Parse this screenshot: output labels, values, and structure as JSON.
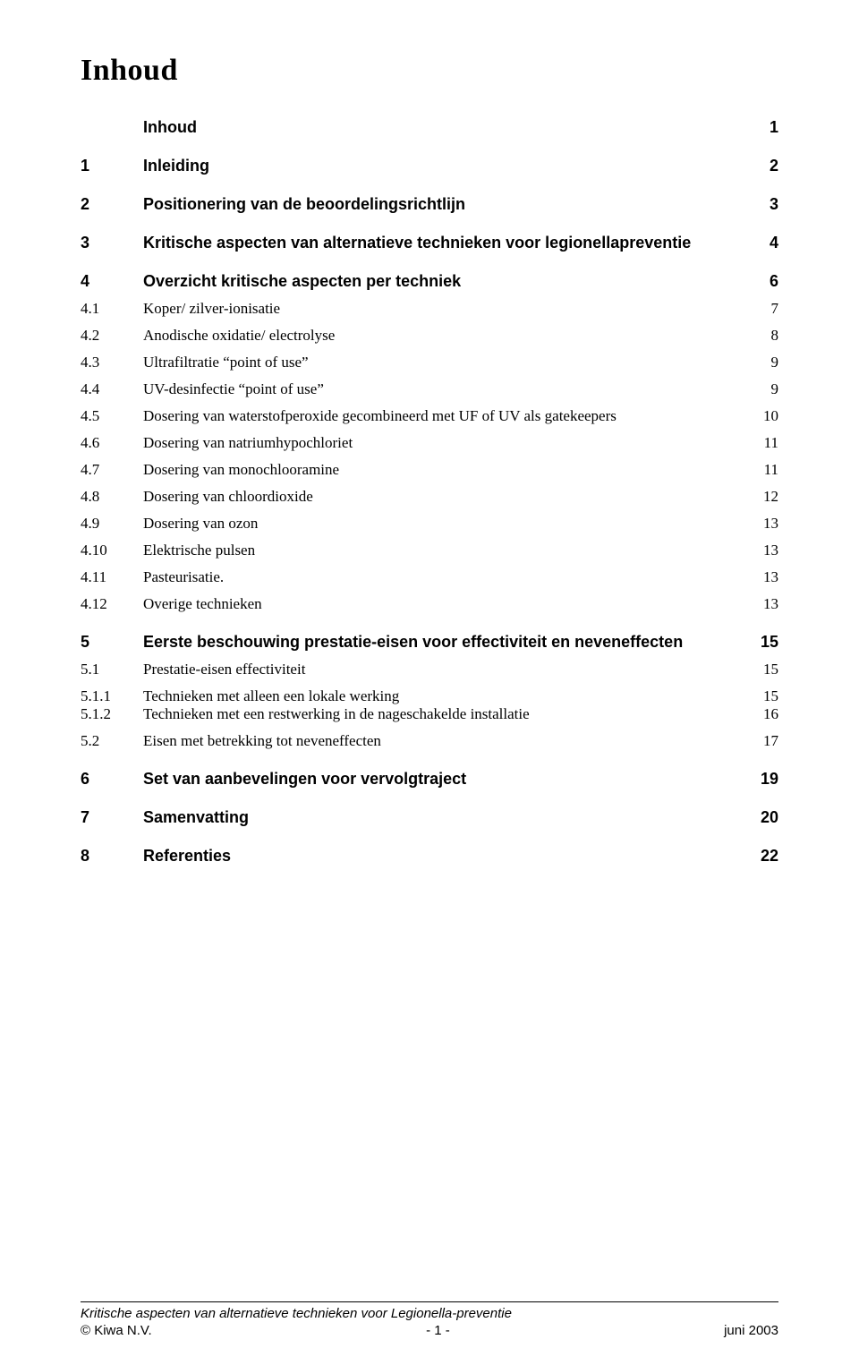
{
  "title": "Inhoud",
  "toc": [
    {
      "num": "",
      "text": "Inhoud",
      "page": "1",
      "level": "heading",
      "first": true
    },
    {
      "num": "1",
      "text": "Inleiding",
      "page": "2",
      "level": "heading"
    },
    {
      "num": "2",
      "text": "Positionering van de beoordelingsrichtlijn",
      "page": "3",
      "level": "heading"
    },
    {
      "num": "3",
      "text": "Kritische aspecten van alternatieve technieken voor legionellapreventie",
      "page": "4",
      "level": "heading"
    },
    {
      "num": "4",
      "text": "Overzicht kritische aspecten per techniek",
      "page": "6",
      "level": "heading"
    },
    {
      "num": "4.1",
      "text": "Koper/ zilver-ionisatie",
      "page": "7",
      "level": "sub"
    },
    {
      "num": "4.2",
      "text": "Anodische oxidatie/ electrolyse",
      "page": "8",
      "level": "sub"
    },
    {
      "num": "4.3",
      "text": "Ultrafiltratie “point of use”",
      "page": "9",
      "level": "sub"
    },
    {
      "num": "4.4",
      "text": "UV-desinfectie “point of use”",
      "page": "9",
      "level": "sub"
    },
    {
      "num": "4.5",
      "text": "Dosering van waterstofperoxide gecombineerd met UF of UV als gatekeepers",
      "page": "10",
      "level": "sub"
    },
    {
      "num": "4.6",
      "text": "Dosering van natriumhypochloriet",
      "page": "11",
      "level": "sub"
    },
    {
      "num": "4.7",
      "text": "Dosering van monochlooramine",
      "page": "11",
      "level": "sub"
    },
    {
      "num": "4.8",
      "text": "Dosering van chloordioxide",
      "page": "12",
      "level": "sub"
    },
    {
      "num": "4.9",
      "text": "Dosering van ozon",
      "page": "13",
      "level": "sub"
    },
    {
      "num": "4.10",
      "text": "Elektrische pulsen",
      "page": "13",
      "level": "sub"
    },
    {
      "num": "4.11",
      "text": "Pasteurisatie.",
      "page": "13",
      "level": "sub"
    },
    {
      "num": "4.12",
      "text": "Overige technieken",
      "page": "13",
      "level": "sub"
    },
    {
      "num": "5",
      "text": "Eerste beschouwing prestatie-eisen voor effectiviteit en neveneffecten",
      "page": "15",
      "level": "heading"
    },
    {
      "num": "5.1",
      "text": "Prestatie-eisen effectiviteit",
      "page": "15",
      "level": "sub"
    },
    {
      "num": "5.1.1",
      "text": "Technieken met alleen een lokale werking",
      "page": "15",
      "level": "subsub"
    },
    {
      "num": "5.1.2",
      "text": "Technieken met een restwerking in de nageschakelde installatie",
      "page": "16",
      "level": "subsub"
    },
    {
      "num": "5.2",
      "text": "Eisen met betrekking tot neveneffecten",
      "page": "17",
      "level": "sub"
    },
    {
      "num": "6",
      "text": "Set van aanbevelingen voor vervolgtraject",
      "page": "19",
      "level": "heading"
    },
    {
      "num": "7",
      "text": "Samenvatting",
      "page": "20",
      "level": "heading"
    },
    {
      "num": "8",
      "text": "Referenties",
      "page": "22",
      "level": "heading"
    }
  ],
  "footer": {
    "title_line": "Kritische aspecten van alternatieve technieken voor Legionella-preventie",
    "left": "© Kiwa N.V.",
    "center": "- 1 -",
    "right": "juni 2003"
  }
}
